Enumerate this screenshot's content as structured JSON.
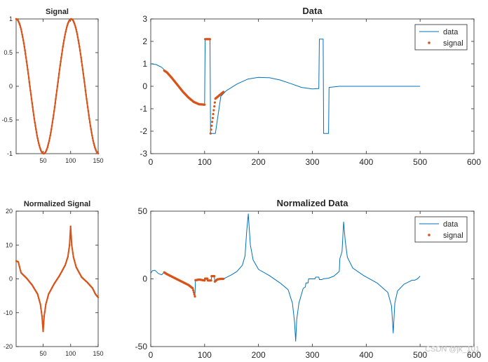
{
  "colors": {
    "data": "#0072BD",
    "signal": "#D95319",
    "axis": "#262626",
    "background": "#ffffff"
  },
  "watermark": "CSDN @jk_101",
  "chart_data": [
    {
      "id": "signal",
      "type": "line",
      "title": "Signal",
      "x": [
        1,
        150
      ],
      "signal_formula": "cos(2*pi*(n-1)/100)",
      "xlim": [
        1,
        150
      ],
      "ylim": [
        -1,
        1
      ],
      "xticks": [
        50,
        100,
        150
      ],
      "xtick_labels": [
        "50",
        "100",
        "150"
      ],
      "yticks": [
        -1,
        -0.5,
        0,
        0.5,
        1
      ],
      "ytick_labels": [
        "-1",
        "-0.5",
        "0",
        "0.5",
        "1"
      ],
      "series": [
        {
          "name": "signal",
          "style": "line with point markers"
        }
      ]
    },
    {
      "id": "data",
      "type": "line",
      "title": "Data",
      "xlim": [
        0,
        600
      ],
      "ylim": [
        -3,
        3
      ],
      "xticks": [
        0,
        100,
        200,
        300,
        400,
        500,
        600
      ],
      "xtick_labels": [
        "0",
        "100",
        "200",
        "300",
        "400",
        "500",
        "600"
      ],
      "yticks": [
        -3,
        -2,
        -1,
        0,
        1,
        2,
        3
      ],
      "ytick_labels": [
        "-3",
        "-2",
        "-1",
        "0",
        "1",
        "2",
        "3"
      ],
      "legend": {
        "location": "top-right",
        "entries": [
          "data",
          "signal"
        ]
      },
      "series": [
        {
          "name": "data",
          "style": "line",
          "x": [
            0,
            10,
            20,
            30,
            40,
            50,
            60,
            70,
            80,
            90,
            100,
            101,
            110,
            111,
            120,
            130,
            140,
            160,
            180,
            200,
            220,
            240,
            260,
            280,
            300,
            312,
            313,
            320,
            321,
            330,
            331,
            350,
            400,
            450,
            500
          ],
          "y": [
            1.0,
            0.97,
            0.85,
            0.62,
            0.35,
            0.05,
            -0.25,
            -0.5,
            -0.7,
            -0.8,
            -0.82,
            2.1,
            2.1,
            -2.1,
            -2.1,
            -0.45,
            -0.2,
            0.1,
            0.32,
            0.4,
            0.38,
            0.28,
            0.12,
            -0.05,
            -0.12,
            -0.1,
            2.1,
            2.1,
            -2.1,
            -2.1,
            -0.05,
            0.0,
            0.0,
            0.0,
            0.0
          ]
        },
        {
          "name": "signal",
          "style": "markers",
          "x_range": [
            25,
            135
          ],
          "x": [
            25,
            30,
            40,
            50,
            60,
            70,
            80,
            90,
            100,
            101,
            110,
            111,
            120,
            130,
            135
          ],
          "y": [
            0.7,
            0.62,
            0.35,
            0.05,
            -0.25,
            -0.5,
            -0.7,
            -0.8,
            -0.82,
            2.1,
            2.1,
            -2.1,
            -0.55,
            -0.35,
            -0.25
          ]
        }
      ]
    },
    {
      "id": "normalized-signal",
      "type": "line",
      "title": "Normalized Signal",
      "xlim": [
        1,
        150
      ],
      "ylim": [
        -20,
        20
      ],
      "xticks": [
        50,
        100,
        150
      ],
      "xtick_labels": [
        "50",
        "100",
        "150"
      ],
      "yticks": [
        -20,
        -10,
        0,
        10,
        20
      ],
      "ytick_labels": [
        "-20",
        "-10",
        "0",
        "10",
        "20"
      ],
      "series": [
        {
          "name": "signal",
          "style": "line with point markers",
          "x": [
            1,
            5,
            8,
            10,
            20,
            30,
            40,
            45,
            48,
            50,
            52,
            55,
            60,
            70,
            80,
            90,
            95,
            98,
            100,
            102,
            105,
            110,
            120,
            130,
            140,
            145,
            150
          ],
          "y": [
            5.3,
            5.0,
            3.0,
            1.8,
            0.2,
            -1.8,
            -4.5,
            -7.5,
            -11,
            -15.5,
            -11,
            -7.5,
            -4.5,
            -1.5,
            1.0,
            4.0,
            6.5,
            10,
            15.5,
            10,
            6.5,
            3.5,
            0.5,
            -1.0,
            -2.8,
            -4.5,
            -5.5
          ]
        }
      ]
    },
    {
      "id": "normalized-data",
      "type": "line",
      "title": "Normalized Data",
      "xlim": [
        0,
        600
      ],
      "ylim": [
        -50,
        50
      ],
      "xticks": [
        0,
        100,
        200,
        300,
        400,
        500,
        600
      ],
      "xtick_labels": [
        "0",
        "100",
        "200",
        "300",
        "400",
        "500",
        "600"
      ],
      "yticks": [
        -50,
        0,
        50
      ],
      "ytick_labels": [
        "-50",
        "0",
        "50"
      ],
      "legend": {
        "location": "top-right",
        "entries": [
          "data",
          "signal"
        ]
      },
      "series": [
        {
          "name": "data",
          "style": "line",
          "x": [
            0,
            3,
            8,
            14,
            20,
            25,
            30,
            40,
            50,
            60,
            70,
            78,
            82,
            83,
            90,
            100,
            101,
            105,
            106,
            112,
            113,
            118,
            119,
            124,
            125,
            130,
            135,
            140,
            150,
            160,
            170,
            175,
            178,
            181,
            185,
            190,
            200,
            220,
            240,
            255,
            263,
            267,
            269,
            271,
            275,
            283,
            287,
            288,
            292,
            293,
            305,
            306,
            312,
            313,
            318,
            320,
            330,
            340,
            350,
            351,
            355,
            358,
            361,
            365,
            375,
            395,
            420,
            440,
            447,
            450,
            453,
            458,
            470,
            485,
            490,
            495,
            500
          ],
          "y": [
            4.0,
            6.0,
            6.3,
            4.0,
            3.0,
            4.8,
            3.5,
            1.5,
            -0.5,
            -2.5,
            -4.5,
            -7.0,
            -13.0,
            -1.0,
            -0.5,
            -1.2,
            0.2,
            0.2,
            -1.2,
            -1.2,
            2.0,
            2.0,
            -2.0,
            -0.3,
            -0.3,
            0.0,
            0.0,
            1.0,
            3.0,
            5.5,
            10.0,
            17.0,
            35.0,
            48.0,
            25.0,
            14.0,
            7.0,
            2.5,
            -3.0,
            -8.0,
            -18.0,
            -32.0,
            -46.0,
            -30.0,
            -18.0,
            -7.0,
            -6.0,
            -3.0,
            -3.0,
            0.0,
            0.0,
            1.3,
            1.3,
            -0.5,
            -0.5,
            0.0,
            0.5,
            2.0,
            5.5,
            15.0,
            20.0,
            42.0,
            28.0,
            16.0,
            8.0,
            2.5,
            -3.0,
            -10.0,
            -20.0,
            -40.0,
            -18.0,
            -9.0,
            -4.0,
            -1.0,
            -1.0,
            0.0,
            2.0
          ]
        },
        {
          "name": "signal",
          "style": "markers",
          "x": [
            25,
            30,
            40,
            50,
            60,
            70,
            78,
            82,
            83,
            90,
            100,
            101,
            105,
            106,
            112,
            113,
            118,
            119,
            124,
            125,
            130,
            135
          ],
          "y": [
            4.8,
            3.5,
            1.5,
            -0.5,
            -2.5,
            -4.5,
            -7.0,
            -13.0,
            -1.0,
            -0.5,
            -1.2,
            0.2,
            0.2,
            -1.2,
            -1.2,
            2.0,
            2.0,
            -2.0,
            -0.3,
            -0.3,
            0.0,
            0.0
          ]
        }
      ]
    }
  ]
}
